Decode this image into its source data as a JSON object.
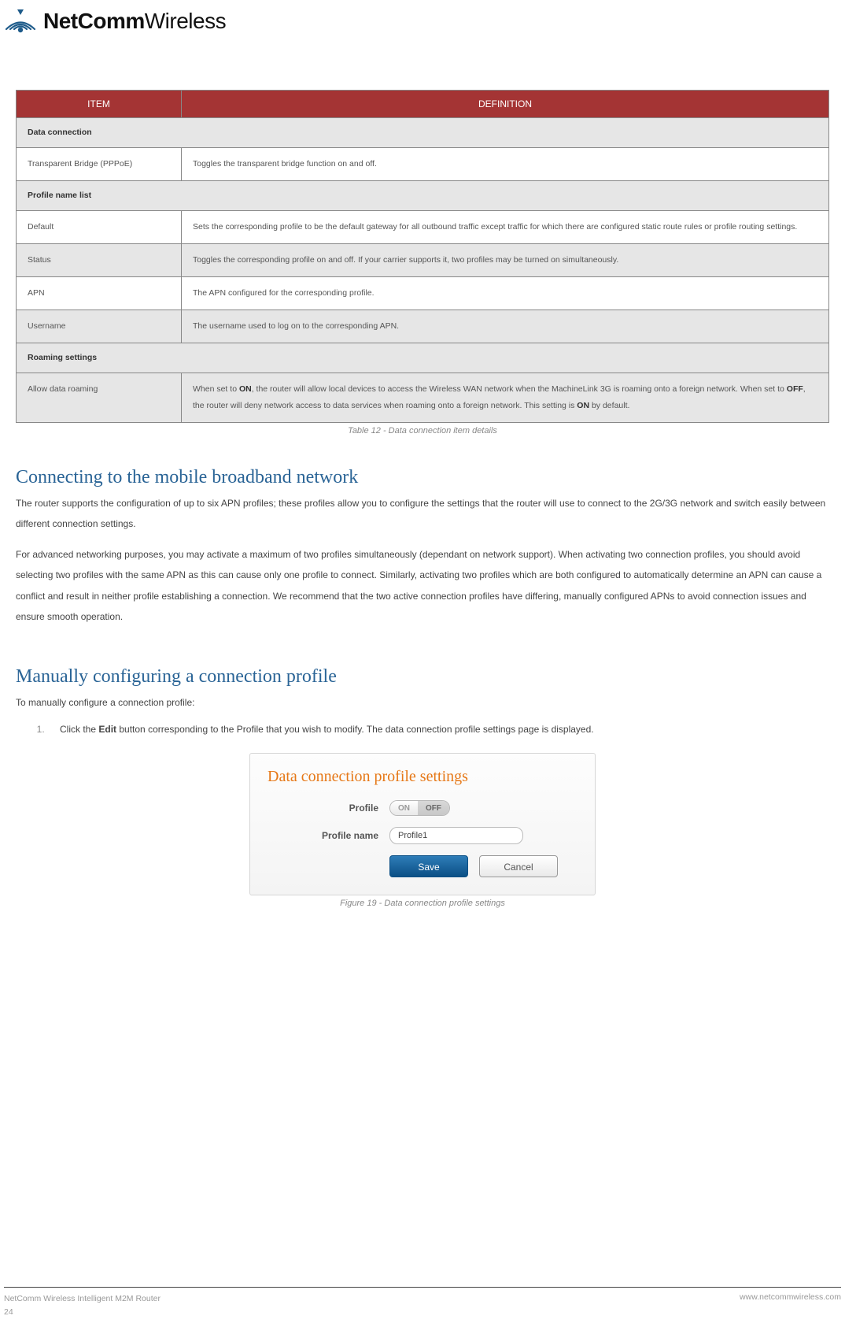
{
  "logo": {
    "bold": "NetComm",
    "light": "Wireless"
  },
  "table": {
    "headers": {
      "item": "ITEM",
      "definition": "DEFINITION"
    },
    "header_bg": "#a43434",
    "header_fg": "#ffffff",
    "rows": [
      {
        "type": "section",
        "label": "Data connection"
      },
      {
        "type": "row",
        "alt": false,
        "item": "Transparent Bridge (PPPoE)",
        "def": "Toggles the transparent bridge function on and off."
      },
      {
        "type": "section",
        "label": "Profile name list"
      },
      {
        "type": "row",
        "alt": false,
        "item": "Default",
        "def": "Sets the corresponding profile to be the default gateway for all outbound traffic except traffic for which there are configured static route rules or profile routing settings."
      },
      {
        "type": "row",
        "alt": true,
        "item": "Status",
        "def": "Toggles the corresponding profile on and off. If your carrier supports it, two profiles may be turned on simultaneously."
      },
      {
        "type": "row",
        "alt": false,
        "item": "APN",
        "def": "The APN configured for the corresponding profile."
      },
      {
        "type": "row",
        "alt": true,
        "item": "Username",
        "def": "The username used to log on to the corresponding APN."
      },
      {
        "type": "section",
        "label": "Roaming settings"
      },
      {
        "type": "row",
        "alt": true,
        "item": "Allow data roaming",
        "def_html": "When set to <span class=\"b\">ON</span>, the router will allow local devices to access the Wireless WAN network when the MachineLink 3G is roaming onto a foreign network. When set to <span class=\"b\">OFF</span>, the router will deny network access to data services when roaming onto a foreign network. This setting is <span class=\"b\">ON</span> by default."
      }
    ],
    "caption": "Table 12 - Data connection item details"
  },
  "sections": {
    "connecting": {
      "heading": "Connecting to the mobile broadband network",
      "p1": "The router supports the configuration of up to six APN profiles; these profiles allow you to configure the settings that the router will use to connect to the 2G/3G network and switch easily between different connection settings.",
      "p2": "For advanced networking purposes, you may activate a maximum of two profiles simultaneously (dependant on network support). When activating two connection profiles, you should avoid selecting two profiles with the same APN as this can cause only one profile to connect. Similarly, activating two profiles which are both configured to automatically determine an APN can cause a conflict and result in neither profile establishing a connection. We recommend that the two active connection profiles have differing, manually configured APNs to avoid connection issues and ensure smooth operation."
    },
    "manual": {
      "heading": "Manually configuring a connection profile",
      "intro": "To manually configure a connection profile:",
      "step1_html": "Click the <span class=\"b\">Edit</span> button corresponding to the Profile that you wish to modify. The data connection profile settings page is displayed."
    }
  },
  "panel": {
    "title": "Data connection profile settings",
    "title_color": "#e67817",
    "labels": {
      "profile": "Profile",
      "profile_name": "Profile name"
    },
    "toggle": {
      "on": "ON",
      "off": "OFF",
      "active": "off"
    },
    "profile_name_value": "Profile1",
    "buttons": {
      "save": "Save",
      "cancel": "Cancel"
    },
    "caption": "Figure 19 - Data connection profile settings"
  },
  "footer": {
    "product": "NetComm Wireless Intelligent M2M Router",
    "page": "24",
    "url": "www.netcommwireless.com"
  }
}
